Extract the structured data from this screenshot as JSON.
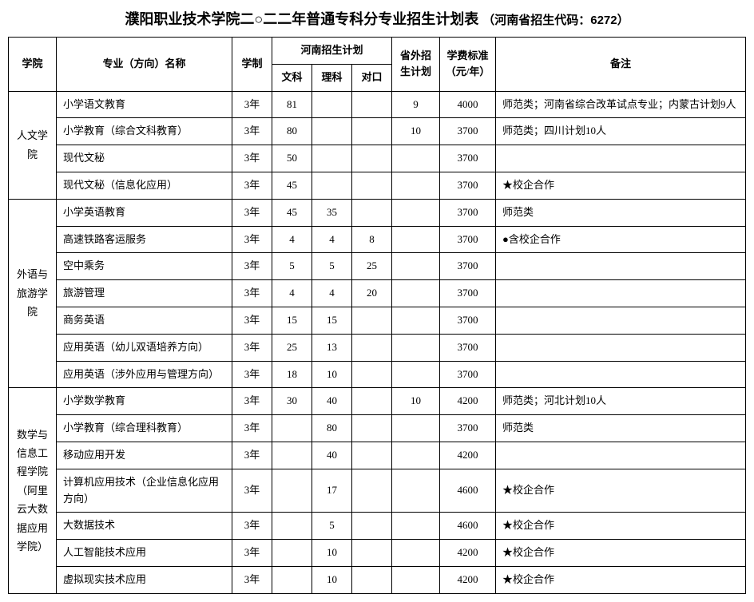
{
  "title_main": "濮阳职业技术学院二○二二年普通专科分专业招生计划表",
  "title_sub": "（河南省招生代码：6272）",
  "headers": {
    "college": "学院",
    "major": "专业（方向）名称",
    "years": "学制",
    "henan_plan": "河南招生计划",
    "wk": "文科",
    "lk": "理科",
    "dk": "对口",
    "out": "省外招生计划",
    "fee": "学费标准（元/年）",
    "note": "备注"
  },
  "colleges": [
    {
      "name": "人文学院",
      "rows": [
        {
          "major": "小学语文教育",
          "years": "3年",
          "wk": "81",
          "lk": "",
          "dk": "",
          "out": "9",
          "fee": "4000",
          "note": "师范类；河南省综合改革试点专业；内蒙古计划9人"
        },
        {
          "major": "小学教育（综合文科教育）",
          "years": "3年",
          "wk": "80",
          "lk": "",
          "dk": "",
          "out": "10",
          "fee": "3700",
          "note": "师范类；四川计划10人"
        },
        {
          "major": "现代文秘",
          "years": "3年",
          "wk": "50",
          "lk": "",
          "dk": "",
          "out": "",
          "fee": "3700",
          "note": ""
        },
        {
          "major": "现代文秘（信息化应用）",
          "years": "3年",
          "wk": "45",
          "lk": "",
          "dk": "",
          "out": "",
          "fee": "3700",
          "note": "★校企合作"
        }
      ]
    },
    {
      "name": "外语与旅游学院",
      "rows": [
        {
          "major": "小学英语教育",
          "years": "3年",
          "wk": "45",
          "lk": "35",
          "dk": "",
          "out": "",
          "fee": "3700",
          "note": "师范类"
        },
        {
          "major": "高速铁路客运服务",
          "years": "3年",
          "wk": "4",
          "lk": "4",
          "dk": "8",
          "out": "",
          "fee": "3700",
          "note": "●含校企合作"
        },
        {
          "major": "空中乘务",
          "years": "3年",
          "wk": "5",
          "lk": "5",
          "dk": "25",
          "out": "",
          "fee": "3700",
          "note": ""
        },
        {
          "major": "旅游管理",
          "years": "3年",
          "wk": "4",
          "lk": "4",
          "dk": "20",
          "out": "",
          "fee": "3700",
          "note": ""
        },
        {
          "major": "商务英语",
          "years": "3年",
          "wk": "15",
          "lk": "15",
          "dk": "",
          "out": "",
          "fee": "3700",
          "note": ""
        },
        {
          "major": "应用英语（幼儿双语培养方向）",
          "years": "3年",
          "wk": "25",
          "lk": "13",
          "dk": "",
          "out": "",
          "fee": "3700",
          "note": ""
        },
        {
          "major": "应用英语（涉外应用与管理方向）",
          "years": "3年",
          "wk": "18",
          "lk": "10",
          "dk": "",
          "out": "",
          "fee": "3700",
          "note": ""
        }
      ]
    },
    {
      "name": "数学与信息工程学院（阿里云大数据应用学院）",
      "rows": [
        {
          "major": "小学数学教育",
          "years": "3年",
          "wk": "30",
          "lk": "40",
          "dk": "",
          "out": "10",
          "fee": "4200",
          "note": "师范类；河北计划10人"
        },
        {
          "major": "小学教育（综合理科教育）",
          "years": "3年",
          "wk": "",
          "lk": "80",
          "dk": "",
          "out": "",
          "fee": "3700",
          "note": "师范类"
        },
        {
          "major": "移动应用开发",
          "years": "3年",
          "wk": "",
          "lk": "40",
          "dk": "",
          "out": "",
          "fee": "4200",
          "note": ""
        },
        {
          "major": "计算机应用技术（企业信息化应用方向）",
          "years": "3年",
          "wk": "",
          "lk": "17",
          "dk": "",
          "out": "",
          "fee": "4600",
          "note": "★校企合作"
        },
        {
          "major": "大数据技术",
          "years": "3年",
          "wk": "",
          "lk": "5",
          "dk": "",
          "out": "",
          "fee": "4600",
          "note": "★校企合作"
        },
        {
          "major": "人工智能技术应用",
          "years": "3年",
          "wk": "",
          "lk": "10",
          "dk": "",
          "out": "",
          "fee": "4200",
          "note": "★校企合作"
        },
        {
          "major": "虚拟现实技术应用",
          "years": "3年",
          "wk": "",
          "lk": "10",
          "dk": "",
          "out": "",
          "fee": "4200",
          "note": "★校企合作"
        }
      ]
    }
  ]
}
